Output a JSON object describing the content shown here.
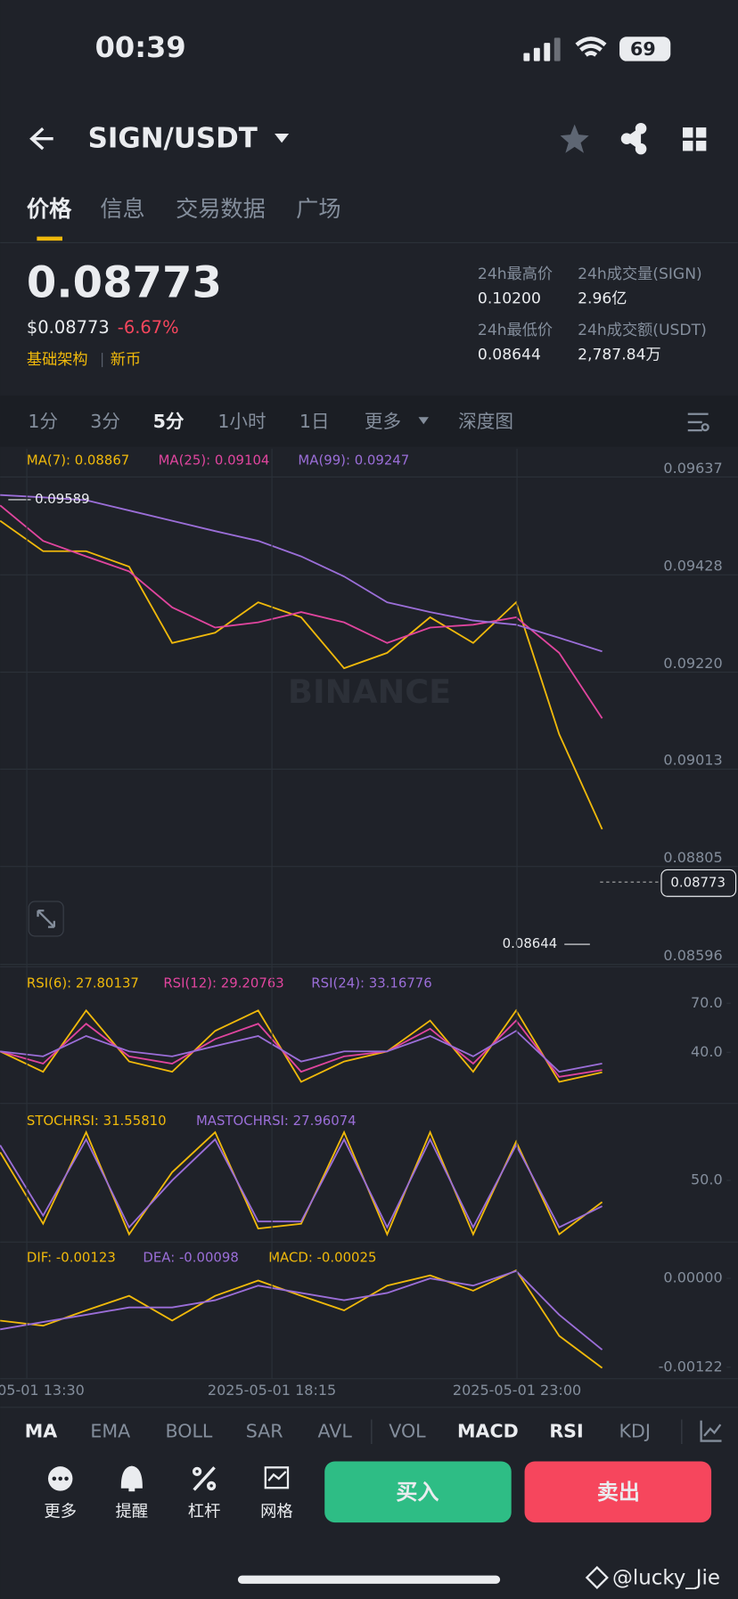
{
  "status_bar": {
    "time": "00:39",
    "battery": "69"
  },
  "header": {
    "pair": "SIGN/USDT"
  },
  "tabs": [
    "价格",
    "信息",
    "交易数据",
    "广场"
  ],
  "ticker": {
    "price": "0.08773",
    "usd_price": "$0.08773",
    "change": "-6.67%",
    "tags": [
      "基础架构",
      "新币"
    ],
    "stats": [
      {
        "label": "24h最高价",
        "value": "0.10200"
      },
      {
        "label": "24h成交量(SIGN)",
        "value": "2.96亿"
      },
      {
        "label": "24h最低价",
        "value": "0.08644"
      },
      {
        "label": "24h成交额(USDT)",
        "value": "2,787.84万"
      }
    ]
  },
  "intervals": [
    "1分",
    "3分",
    "5分",
    "1小时",
    "1日",
    "更多",
    "深度图"
  ],
  "watermark_chart": "BINANCE",
  "chart_data": [
    {
      "type": "line",
      "x": [
        0,
        10,
        20,
        30,
        40,
        50,
        60,
        70,
        80,
        90,
        100,
        110,
        120,
        130,
        140
      ],
      "xlim": [
        0,
        140
      ],
      "ylim": [
        0.0858,
        0.0968
      ],
      "yticks": [
        0.09637,
        0.09428,
        {
          "value": 0.0922,
          "label": "0.09220"
        },
        0.09013,
        0.08805,
        0.08596
      ],
      "annotations": {
        "high": "0.09589",
        "low": "0.08644",
        "last": "0.08773"
      },
      "series": [
        {
          "name": "MA(7): 0.08867",
          "color": "#f0b90b",
          "values": [
            0.09526,
            0.09461,
            0.09461,
            0.09428,
            0.09265,
            0.09287,
            0.09352,
            0.0932,
            0.09211,
            0.09244,
            0.0932,
            0.09265,
            0.09352,
            0.0907,
            0.08867
          ]
        },
        {
          "name": "MA(25): 0.09104",
          "color": "#e0459e",
          "values": [
            0.09559,
            0.09483,
            0.0945,
            0.09418,
            0.09341,
            0.09298,
            0.09309,
            0.09331,
            0.09309,
            0.09265,
            0.09298,
            0.09304,
            0.0932,
            0.09244,
            0.09104
          ]
        },
        {
          "name": "MA(99): 0.09247",
          "color": "#9b6ed8",
          "values": [
            0.09581,
            0.09576,
            0.0957,
            0.09548,
            0.09526,
            0.09504,
            0.09483,
            0.0945,
            0.09407,
            0.09352,
            0.09331,
            0.09313,
            0.09304,
            0.09276,
            0.09247
          ]
        }
      ]
    },
    {
      "type": "line",
      "x": [
        0,
        10,
        20,
        30,
        40,
        50,
        60,
        70,
        80,
        90,
        100,
        110,
        120,
        130,
        140
      ],
      "xlim": [
        0,
        140
      ],
      "ylim": [
        10,
        88
      ],
      "yticks": [
        {
          "value": 70,
          "label": "70.0"
        },
        {
          "value": 40,
          "label": "40.0"
        }
      ],
      "series": [
        {
          "name": "RSI(6): 27.80137",
          "color": "#f0b90b",
          "values": [
            40.6,
            28.1,
            65.6,
            34.4,
            28.1,
            53.1,
            65.6,
            21.9,
            34.4,
            40.6,
            59.4,
            28.1,
            65.6,
            21.9,
            27.8
          ]
        },
        {
          "name": "RSI(12): 29.20763",
          "color": "#e0459e",
          "values": [
            40.6,
            33.1,
            57.5,
            37.5,
            33.1,
            48.1,
            57.5,
            28.1,
            37.5,
            40.6,
            54.4,
            33.1,
            59.4,
            25,
            29.21
          ]
        },
        {
          "name": "RSI(24): 33.16776",
          "color": "#9b6ed8",
          "values": [
            40.6,
            37.5,
            50,
            40.6,
            37.5,
            43.8,
            50,
            34.4,
            40.6,
            40.6,
            50,
            37.5,
            53.1,
            28.1,
            33.17
          ]
        }
      ]
    },
    {
      "type": "line",
      "x": [
        0,
        10,
        20,
        30,
        40,
        50,
        60,
        70,
        80,
        90,
        100,
        110,
        120,
        130,
        140
      ],
      "xlim": [
        0,
        140
      ],
      "ylim": [
        0,
        100
      ],
      "yticks": [
        {
          "value": 50,
          "label": "50.0"
        }
      ],
      "series": [
        {
          "name": "STOCHRSI: 31.55810",
          "color": "#f0b90b",
          "values": [
            74,
            13,
            91,
            4,
            57,
            91,
            9,
            13,
            91,
            4,
            91,
            4,
            83,
            4,
            31.56
          ]
        },
        {
          "name": "MASTOCHRSI: 27.96074",
          "color": "#9b6ed8",
          "values": [
            80,
            20,
            85,
            10,
            50,
            85,
            15,
            15,
            85,
            10,
            85,
            10,
            80,
            10,
            27.96
          ]
        }
      ]
    },
    {
      "type": "line",
      "x": [
        0,
        10,
        20,
        30,
        40,
        50,
        60,
        70,
        80,
        90,
        100,
        110,
        120,
        130,
        140
      ],
      "xlim": [
        0,
        140
      ],
      "ylim": [
        -0.00135,
        0.0004
      ],
      "yticks": [
        {
          "value": 0,
          "label": "0.00000"
        },
        -0.00122
      ],
      "histogram_label": "MACD: -0.00025",
      "xticks": [
        {
          "value": 6.2,
          "label": "05-01 13:30"
        },
        {
          "value": 63.2,
          "label": "2025-05-01 18:15"
        },
        {
          "value": 120.2,
          "label": "2025-05-01 23:00"
        }
      ],
      "series": [
        {
          "name": "DIF: -0.00123",
          "color": "#f0b90b",
          "values": [
            -0.00058,
            -0.00065,
            -0.00044,
            -0.00024,
            -0.00058,
            -0.00024,
            -3e-05,
            -0.00024,
            -0.00044,
            -0.0001,
            4e-05,
            -0.00017,
            0.00011,
            -0.00079,
            -0.00123
          ]
        },
        {
          "name": "DEA: -0.00098",
          "color": "#9b6ed8",
          "values": [
            -0.0007,
            -0.0006,
            -0.0005,
            -0.0004,
            -0.0004,
            -0.0003,
            -0.0001,
            -0.0002,
            -0.0003,
            -0.0002,
            0,
            -0.0001,
            0.0001,
            -0.0005,
            -0.00098
          ]
        }
      ]
    }
  ],
  "indicator_tabs": [
    "MA",
    "EMA",
    "BOLL",
    "SAR",
    "AVL",
    "VOL",
    "MACD",
    "RSI",
    "KDJ"
  ],
  "actions": [
    "更多",
    "提醒",
    "杠杆",
    "网格"
  ],
  "buttons": {
    "buy": "买入",
    "sell": "卖出"
  },
  "watermark": "@lucky_Jie"
}
